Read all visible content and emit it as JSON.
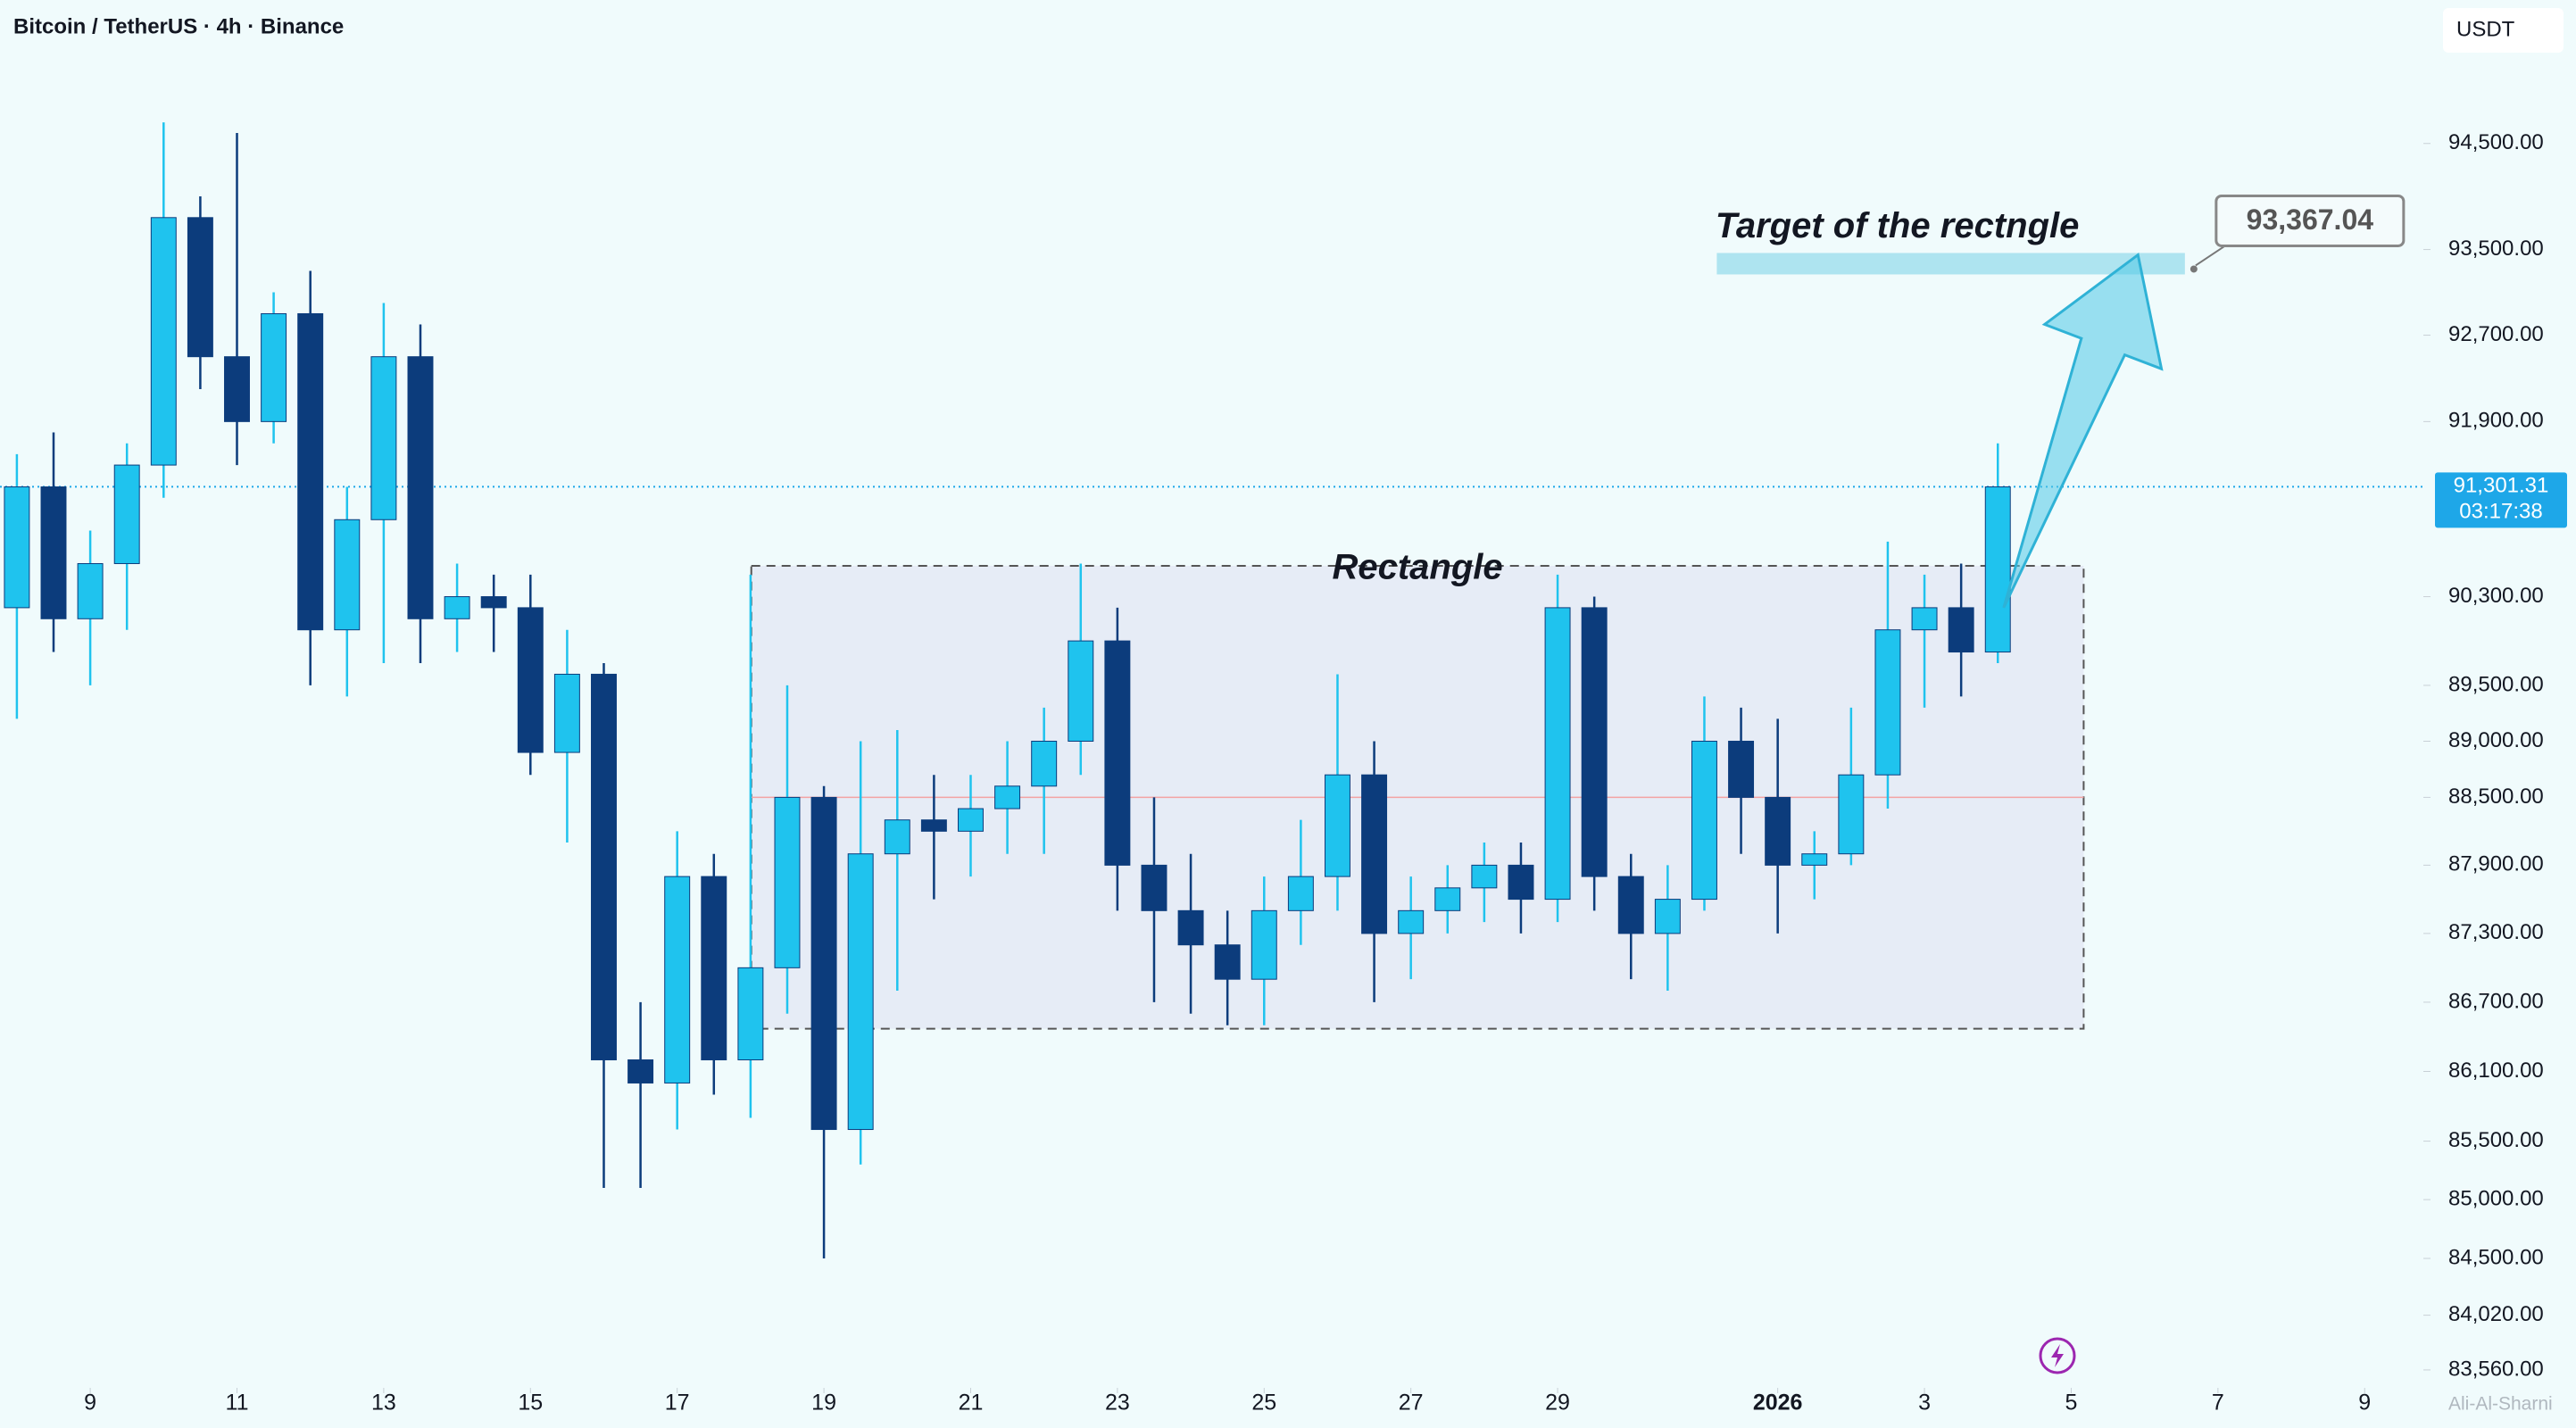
{
  "chart_data": {
    "type": "candlestick",
    "title": "Bitcoin / TetherUS · 4h · Binance",
    "currency": "USDT",
    "watermark": "Ali-Al-Sharni",
    "log_scale": true,
    "up_color": "#1fc3ee",
    "down_color": "#0c3c7c",
    "x": [
      8,
      8.5,
      9,
      9.5,
      10,
      10.5,
      11,
      11.5,
      12,
      12.5,
      13,
      13.5,
      14,
      14.5,
      15,
      15.5,
      16,
      16.5,
      17,
      17.5,
      18,
      18.5,
      19,
      19.5,
      20,
      20.5,
      21,
      21.5,
      22,
      22.5,
      23,
      23.5,
      24,
      24.5,
      25,
      25.5,
      26,
      26.5,
      27,
      27.5,
      28,
      28.5,
      29,
      29.5,
      30,
      30.5,
      31,
      31.5,
      32,
      32.5,
      33,
      33.5,
      34,
      34.5,
      35
    ],
    "open": [
      90200,
      91300,
      90100,
      90600,
      91500,
      93800,
      92500,
      91900,
      92900,
      90000,
      91000,
      92500,
      90100,
      90300,
      90200,
      88900,
      89600,
      86200,
      86000,
      87800,
      86200,
      87000,
      88500,
      85600,
      88000,
      88300,
      88200,
      88400,
      88600,
      89000,
      89900,
      87900,
      87500,
      87200,
      86900,
      87500,
      87800,
      88700,
      87300,
      87500,
      87700,
      87900,
      87600,
      90200,
      87800,
      87300,
      87600,
      89000,
      88500,
      87900,
      88000,
      88700,
      90000,
      90200,
      89800
    ],
    "high": [
      91600,
      91800,
      90900,
      91700,
      94700,
      94000,
      94600,
      93100,
      93300,
      91300,
      93000,
      92800,
      90600,
      90500,
      90500,
      90000,
      89700,
      86700,
      88200,
      88000,
      90500,
      89500,
      88600,
      89000,
      89100,
      88700,
      88700,
      89000,
      89300,
      90600,
      90200,
      88500,
      88000,
      87500,
      87800,
      88300,
      89600,
      89000,
      87800,
      87900,
      88100,
      88100,
      90500,
      90300,
      88000,
      87900,
      89400,
      89300,
      89200,
      88200,
      89300,
      90800,
      90500,
      90600,
      91700
    ],
    "low": [
      89200,
      89800,
      89500,
      90000,
      91200,
      92200,
      91500,
      91700,
      89500,
      89400,
      89700,
      89700,
      89800,
      89800,
      88700,
      88100,
      85100,
      85100,
      85600,
      85900,
      85700,
      86600,
      84500,
      85300,
      86800,
      87600,
      87800,
      88000,
      88000,
      88700,
      87500,
      86700,
      86600,
      86500,
      86500,
      87200,
      87500,
      86700,
      86900,
      87300,
      87400,
      87300,
      87400,
      87500,
      86900,
      86800,
      87500,
      88000,
      87300,
      87600,
      87900,
      88400,
      89300,
      89400,
      89700
    ],
    "close": [
      91300,
      90100,
      90600,
      91500,
      93800,
      92500,
      91900,
      92900,
      90000,
      91000,
      92500,
      90100,
      90300,
      90200,
      88900,
      89600,
      86200,
      86000,
      87800,
      86200,
      87000,
      88500,
      85600,
      88000,
      88300,
      88200,
      88400,
      88600,
      89000,
      89900,
      87900,
      87500,
      87200,
      86900,
      87500,
      87800,
      88700,
      87300,
      87500,
      87700,
      87900,
      87600,
      90200,
      87800,
      87300,
      87600,
      89000,
      88500,
      87900,
      88000,
      88700,
      90000,
      90200,
      89800,
      91300
    ],
    "xlim": [
      7.77,
      40.8
    ],
    "ylim": [
      83410,
      95870
    ],
    "xticks": [
      9,
      11,
      13,
      15,
      17,
      19,
      21,
      23,
      25,
      27,
      29,
      {
        "value": 32,
        "label": "2026"
      },
      {
        "value": 34,
        "label": "3"
      },
      {
        "value": 36,
        "label": "5"
      },
      {
        "value": 38,
        "label": "7"
      },
      {
        "value": 40,
        "label": "9"
      }
    ],
    "yticks": [
      {
        "value": 94500,
        "label": "94,500.00"
      },
      {
        "value": 93500,
        "label": "93,500.00"
      },
      {
        "value": 92700,
        "label": "92,700.00"
      },
      {
        "value": 91900,
        "label": "91,900.00"
      },
      {
        "value": 90300,
        "label": "90,300.00"
      },
      {
        "value": 89500,
        "label": "89,500.00"
      },
      {
        "value": 89000,
        "label": "89,000.00"
      },
      {
        "value": 88500,
        "label": "88,500.00"
      },
      {
        "value": 87900,
        "label": "87,900.00"
      },
      {
        "value": 87300,
        "label": "87,300.00"
      },
      {
        "value": 86700,
        "label": "86,700.00"
      },
      {
        "value": 86100,
        "label": "86,100.00"
      },
      {
        "value": 85500,
        "label": "85,500.00"
      },
      {
        "value": 85000,
        "label": "85,000.00"
      },
      {
        "value": 84500,
        "label": "84,500.00"
      },
      {
        "value": 84020,
        "label": "84,020.00"
      },
      {
        "value": 83560,
        "label": "83,560.00"
      }
    ],
    "last_price": {
      "value": 91301.31,
      "label": "91,301.31",
      "countdown": "03:17:38",
      "color": "#1ea7e8"
    },
    "rectangle": {
      "label": "Rectangle",
      "x": [
        18.01,
        36.17
      ],
      "y": [
        86470,
        90580
      ],
      "mid": 88500
    },
    "target": {
      "label": "Target of the rectngle",
      "value": 93367.04,
      "value_label": "93,367.04",
      "x": [
        31.17,
        37.55
      ]
    },
    "arrow": {
      "x": [
        35.08,
        36.91
      ],
      "y": [
        90200,
        93450
      ]
    }
  }
}
